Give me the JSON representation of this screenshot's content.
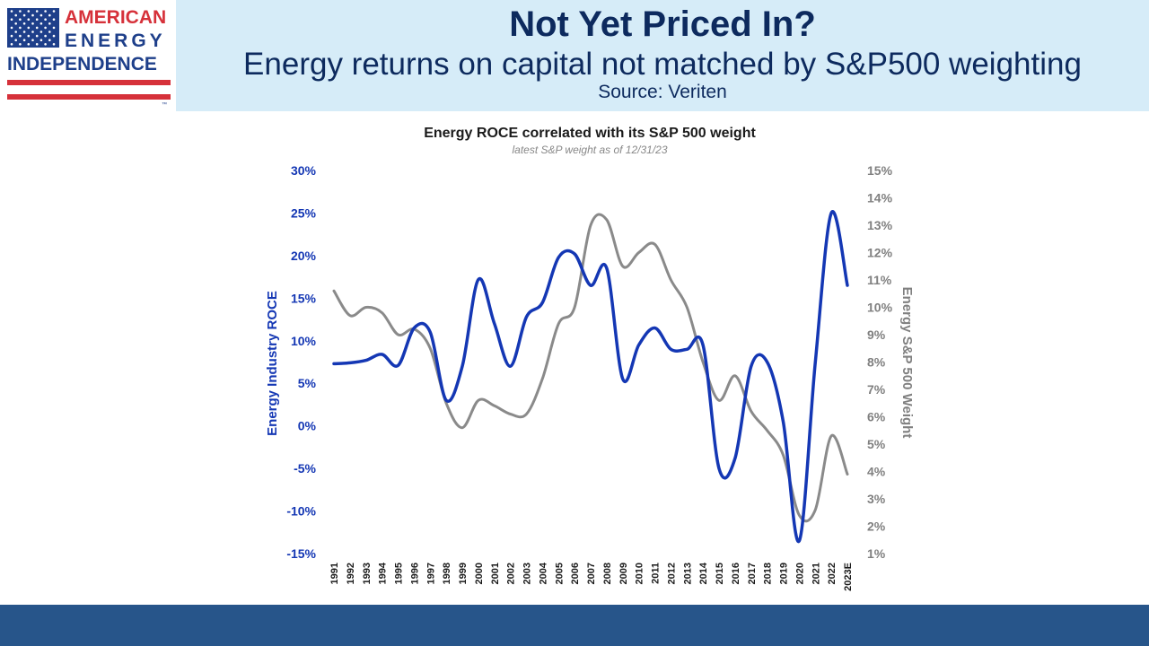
{
  "header": {
    "logo": {
      "line1": "AMERICAN",
      "line2": "ENERGY",
      "line3": "INDEPENDENCE",
      "tm": "™",
      "colors": {
        "red": "#d6313a",
        "blue": "#1e3f8a"
      }
    },
    "title": "Not Yet Priced In?",
    "subtitle": "Energy returns on capital not matched by S&P500 weighting",
    "source": "Source: Veriten"
  },
  "colors": {
    "header_bg": "#d6ecf8",
    "footer_bg": "#27558a",
    "title": "#0d2a5e"
  },
  "chart_data": {
    "type": "line",
    "title": "Energy ROCE correlated with its S&P 500 weight",
    "subtitle": "latest S&P weight as of 12/31/23",
    "x": [
      "1991",
      "1992",
      "1993",
      "1994",
      "1995",
      "1996",
      "1997",
      "1998",
      "1999",
      "2000",
      "2001",
      "2002",
      "2003",
      "2004",
      "2005",
      "2006",
      "2007",
      "2008",
      "2009",
      "2010",
      "2011",
      "2012",
      "2013",
      "2014",
      "2015",
      "2016",
      "2017",
      "2018",
      "2019",
      "2020",
      "2021",
      "2022",
      "2023E"
    ],
    "y_left": {
      "label": "Energy Industry ROCE",
      "range": [
        -15,
        30
      ],
      "ticks": [
        "-15%",
        "-10%",
        "-5%",
        "0%",
        "5%",
        "10%",
        "15%",
        "20%",
        "25%",
        "30%"
      ],
      "color": "#1437b4"
    },
    "y_right": {
      "label": "Energy S&P 500 Weight",
      "range": [
        1,
        15
      ],
      "ticks": [
        "1%",
        "2%",
        "3%",
        "4%",
        "5%",
        "6%",
        "7%",
        "8%",
        "9%",
        "10%",
        "11%",
        "12%",
        "13%",
        "14%",
        "15%"
      ],
      "color": "#808080"
    },
    "series": [
      {
        "axis": "left",
        "color": "#1437b4",
        "values": [
          7.3,
          7.4,
          7.7,
          8.4,
          7.1,
          11.5,
          11.0,
          3.0,
          7.0,
          17.2,
          12.0,
          7.0,
          12.8,
          14.5,
          19.8,
          20.2,
          16.5,
          18.5,
          5.5,
          9.5,
          11.5,
          9.0,
          9.0,
          9.5,
          -5.0,
          -3.8,
          7.0,
          7.5,
          0.5,
          -13.5,
          7.5,
          25.0,
          16.5
        ]
      },
      {
        "axis": "right",
        "color": "#8a8a8a",
        "values": [
          10.6,
          9.7,
          10.0,
          9.8,
          9.0,
          9.2,
          8.5,
          6.5,
          5.6,
          6.6,
          6.4,
          6.1,
          6.1,
          7.4,
          9.4,
          10.0,
          13.0,
          13.2,
          11.5,
          12.0,
          12.3,
          11.0,
          10.0,
          8.0,
          6.6,
          7.5,
          6.2,
          5.5,
          4.6,
          2.4,
          2.6,
          5.3,
          3.9
        ]
      }
    ],
    "grid": false
  }
}
